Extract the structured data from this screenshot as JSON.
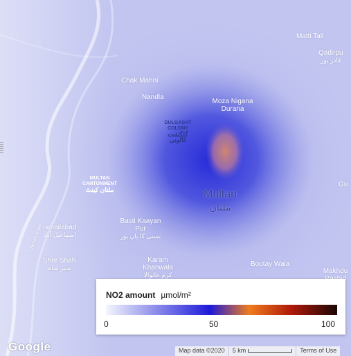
{
  "map": {
    "place_labels": [
      {
        "name": "Matti Tall",
        "urdu": ""
      },
      {
        "name": "Qadirpu",
        "urdu": "قادر پور"
      },
      {
        "name": "Chak Mahni",
        "urdu": ""
      },
      {
        "name": "Nandla",
        "urdu": ""
      },
      {
        "name": "Moza Nigana Durana",
        "urdu": ""
      },
      {
        "name": "DULGASHT COLONY",
        "urdu": "گلگشت کالونی"
      },
      {
        "name": "MULTAN CANTONMENT",
        "urdu": "ملتان کینٹ"
      },
      {
        "name": "Gu",
        "urdu": ""
      },
      {
        "name": "Multan",
        "urdu": "ملتان"
      },
      {
        "name": "Basti Kaayan Pur",
        "urdu": "بستی کا یان پور"
      },
      {
        "name": "Ismailabad",
        "urdu": "اسماعیل آباد"
      },
      {
        "name": "Sher Shah",
        "urdu": "شیر شاہ"
      },
      {
        "name": "Karam Khanwala",
        "urdu": "کرم خانوالا"
      },
      {
        "name": "Bootay Wala",
        "urdu": ""
      },
      {
        "name": "Makhdu Rashid",
        "urdu": ""
      }
    ],
    "road_label": "Chenab River",
    "layer_colors": [
      "#f4f6fc",
      "#1d1ad8",
      "#f07c1e",
      "#1a0606"
    ]
  },
  "legend": {
    "title": "NO2 amount",
    "unit": "µmol/m²",
    "ticks": [
      "0",
      "50",
      "100"
    ]
  },
  "footer": {
    "logo": "Google",
    "map_data": "Map data ©2020",
    "scale": "5 km",
    "terms": "Terms of Use"
  }
}
